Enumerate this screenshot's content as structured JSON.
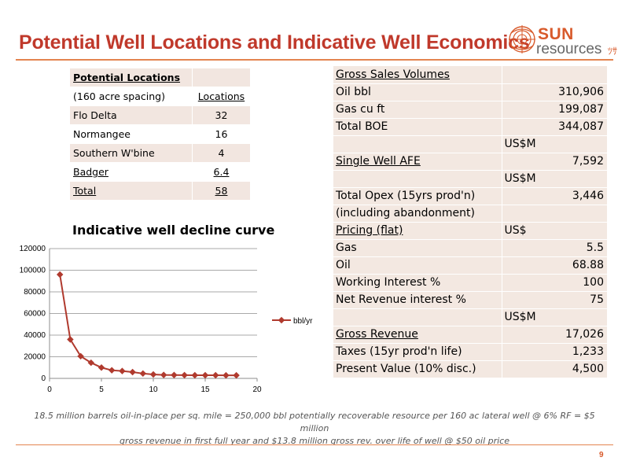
{
  "header": {
    "title": "Potential Well Locations and Indicative Well Economics",
    "logo": {
      "line1": "SUN",
      "line2": "resources"
    }
  },
  "locations": {
    "header": [
      "Potential Locations",
      ""
    ],
    "rows": [
      [
        "(160 acre spacing)",
        "Locations"
      ],
      [
        "Flo Delta",
        "32"
      ],
      [
        "Normangee",
        "16"
      ],
      [
        "Southern W'bine",
        "4"
      ],
      [
        "Badger",
        "6.4"
      ],
      [
        "Total",
        "58"
      ]
    ]
  },
  "economics": {
    "rows": [
      [
        "Gross Sales Volumes",
        ""
      ],
      [
        "Oil bbl",
        "310,906"
      ],
      [
        "Gas cu ft",
        "199,087"
      ],
      [
        "Total BOE",
        "344,087"
      ],
      [
        "",
        "US$M"
      ],
      [
        "Single Well AFE",
        "7,592"
      ],
      [
        "",
        "US$M"
      ],
      [
        "Total Opex (15yrs prod'n)",
        "3,446"
      ],
      [
        "(including abandonment)",
        ""
      ],
      [
        "Pricing (flat)",
        "US$"
      ],
      [
        "Gas",
        "5.5"
      ],
      [
        "Oil",
        "68.88"
      ],
      [
        "Working Interest %",
        "100"
      ],
      [
        "Net Revenue interest %",
        "75"
      ],
      [
        "",
        "US$M"
      ],
      [
        "Gross Revenue",
        "17,026"
      ],
      [
        "Taxes (15yr prod'n life)",
        "1,233"
      ],
      [
        "Present Value (10% disc.)",
        "4,500"
      ]
    ]
  },
  "chart_data": {
    "type": "line",
    "title": "Indicative  well decline curve",
    "xlabel": "",
    "ylabel": "",
    "x": [
      1,
      2,
      3,
      4,
      5,
      6,
      7,
      8,
      9,
      10,
      11,
      12,
      13,
      14,
      15,
      16,
      17,
      18
    ],
    "series": [
      {
        "name": "bbl/yr",
        "values": [
          96000,
          36000,
          20500,
          14500,
          10000,
          7500,
          6800,
          5800,
          4500,
          3600,
          3200,
          3100,
          3000,
          2900,
          2900,
          2900,
          2800,
          2800
        ]
      }
    ],
    "xlim": [
      0,
      20
    ],
    "ylim": [
      0,
      120000
    ],
    "xticks": [
      "0",
      "5",
      "10",
      "15",
      "20"
    ],
    "yticks": [
      "0",
      "20000",
      "40000",
      "60000",
      "80000",
      "100000",
      "120000"
    ],
    "grid": true,
    "legend": "right",
    "color": "#b03a2e"
  },
  "footnote": {
    "line1": "18.5 million barrels oil-in-place per sq. mile = 250,000 bbl potentially recoverable resource per 160 ac lateral well @ 6% RF = $5 million",
    "line2": "gross revenue in first full year and $13.8 million gross rev. over life of well @ $50 oil price"
  },
  "page_number": "9"
}
